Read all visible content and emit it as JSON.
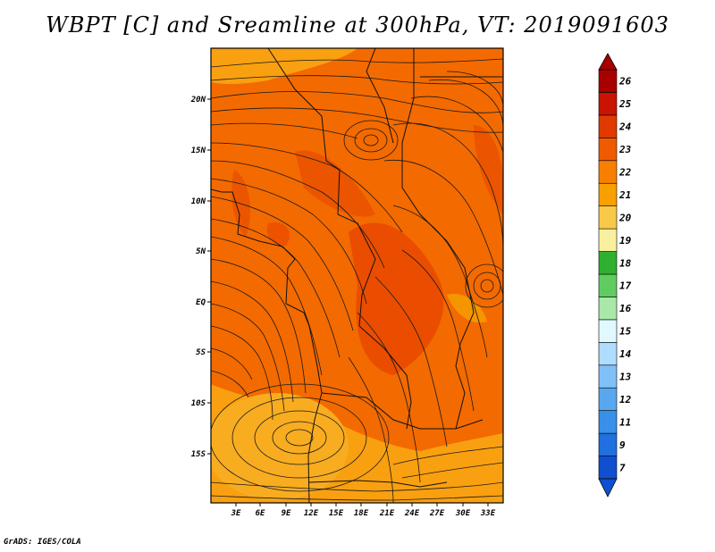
{
  "title": "WBPT [C] and Sreamline at 300hPa, VT: 2019091603",
  "credit": "GrADS: IGES/COLA",
  "map": {
    "lat_labels": [
      "20N",
      "15N",
      "10N",
      "5N",
      "EQ",
      "5S",
      "10S",
      "15S"
    ],
    "lon_labels": [
      "3E",
      "6E",
      "9E",
      "12E",
      "15E",
      "18E",
      "21E",
      "24E",
      "27E",
      "30E",
      "33E"
    ]
  },
  "colorbar": {
    "levels": [
      "26",
      "25",
      "24",
      "23",
      "22",
      "21",
      "20",
      "19",
      "18",
      "17",
      "16",
      "15",
      "14",
      "13",
      "12",
      "11",
      "9",
      "7"
    ],
    "colors": [
      "#a80000",
      "#c81400",
      "#e03a00",
      "#f05a00",
      "#f88000",
      "#f8a000",
      "#f8c848",
      "#f8f0a0",
      "#30b030",
      "#60cc60",
      "#a8e8a8",
      "#e0f8ff",
      "#b0dcff",
      "#80c0f8",
      "#58a8f0",
      "#3890e8",
      "#2070e0",
      "#1050d0"
    ]
  }
}
